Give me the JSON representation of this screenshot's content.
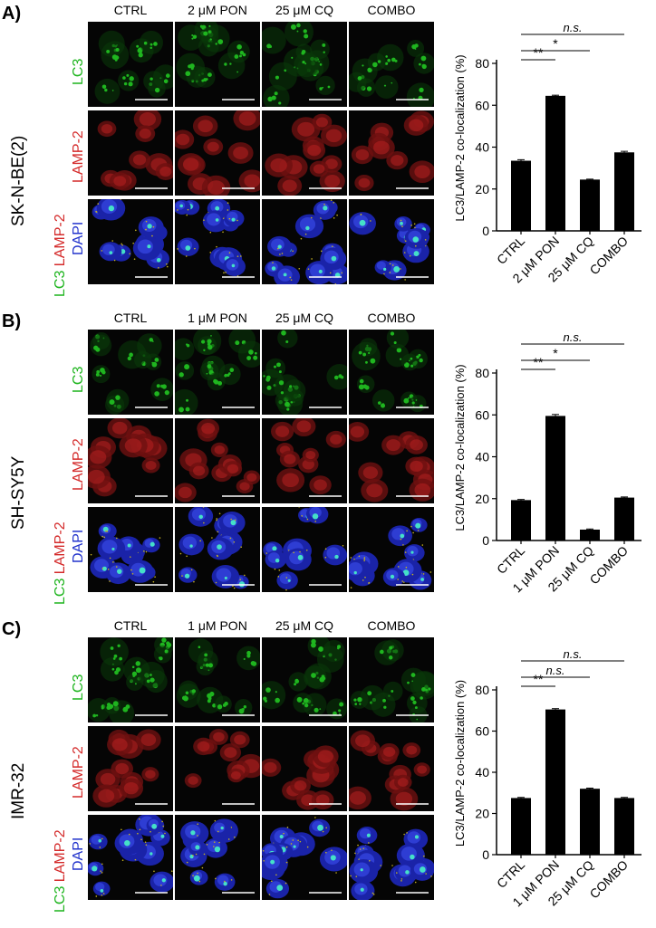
{
  "colors": {
    "lc3": "#1fb51f",
    "lamp2": "#d42a2a",
    "dapi": "#2233cc",
    "bar": "#000000"
  },
  "panels": [
    {
      "label": "A)",
      "cell_line": "SK-N-BE(2)",
      "columns": [
        "CTRL",
        "2 μM PON",
        "25 μM CQ",
        "COMBO"
      ],
      "row_labels": {
        "lc3": "LC3",
        "lamp2": "LAMP-2",
        "merge": [
          [
            {
              "text": "DAPI",
              "color": "dapi"
            }
          ],
          [
            {
              "text": "LC3 ",
              "color": "lc3"
            },
            {
              "text": "LAMP-2",
              "color": "lamp2"
            }
          ]
        ]
      }
    },
    {
      "label": "B)",
      "cell_line": "SH-SY5Y",
      "columns": [
        "CTRL",
        "1 μM PON",
        "25 μM CQ",
        "COMBO"
      ],
      "row_labels": {
        "lc3": "LC3",
        "lamp2": "LAMP-2",
        "merge": [
          [
            {
              "text": "DAPI",
              "color": "dapi"
            }
          ],
          [
            {
              "text": "LC3 ",
              "color": "lc3"
            },
            {
              "text": "LAMP-2",
              "color": "lamp2"
            }
          ]
        ]
      }
    },
    {
      "label": "C)",
      "cell_line": "IMR-32",
      "columns": [
        "CTRL",
        "1 μM PON",
        "25 μM CQ",
        "COMBO"
      ],
      "row_labels": {
        "lc3": "LC3",
        "lamp2": "LAMP-2",
        "merge": [
          [
            {
              "text": "DAPI",
              "color": "dapi"
            }
          ],
          [
            {
              "text": "LC3 ",
              "color": "lc3"
            },
            {
              "text": "LAMP-2",
              "color": "lamp2"
            }
          ]
        ]
      }
    }
  ],
  "chart_data": [
    {
      "type": "bar",
      "categories": [
        "CTRL",
        "2 μM PON",
        "25 μM CQ",
        "COMBO"
      ],
      "values": [
        33.5,
        64.5,
        24.5,
        37.5
      ],
      "errors": [
        0.5,
        0.3,
        0.2,
        0.5
      ],
      "ylabel": "LC3/LAMP-2 co-localization (%)",
      "ylim": [
        0,
        80
      ],
      "yticks": [
        0,
        20,
        40,
        60,
        80
      ],
      "significance": [
        {
          "from": "CTRL",
          "to": "2 μM PON",
          "label": "**"
        },
        {
          "from": "CTRL",
          "to": "25 μM CQ",
          "label": "*"
        },
        {
          "from": "CTRL",
          "to": "COMBO",
          "label": "n.s."
        }
      ]
    },
    {
      "type": "bar",
      "categories": [
        "CTRL",
        "1 μM PON",
        "25 μM CQ",
        "COMBO"
      ],
      "values": [
        19.3,
        59.5,
        5.2,
        20.5
      ],
      "errors": [
        0.3,
        0.7,
        0.3,
        0.3
      ],
      "ylabel": "LC3/LAMP-2 co-localization (%)",
      "ylim": [
        0,
        80
      ],
      "yticks": [
        0,
        20,
        40,
        60,
        80
      ],
      "significance": [
        {
          "from": "CTRL",
          "to": "1 μM PON",
          "label": "**"
        },
        {
          "from": "CTRL",
          "to": "25 μM CQ",
          "label": "*"
        },
        {
          "from": "CTRL",
          "to": "COMBO",
          "label": "n.s."
        }
      ]
    },
    {
      "type": "bar",
      "categories": [
        "CTRL",
        "1 μM PON",
        "25 μM CQ",
        "COMBO"
      ],
      "values": [
        27.5,
        70.5,
        32,
        27.5
      ],
      "errors": [
        0.3,
        0.4,
        0.3,
        0.3
      ],
      "ylabel": "LC3/LAMP-2 co-localization (%)",
      "ylim": [
        0,
        80
      ],
      "yticks": [
        0,
        20,
        40,
        60,
        80
      ],
      "significance": [
        {
          "from": "CTRL",
          "to": "1 μM PON",
          "label": "**"
        },
        {
          "from": "CTRL",
          "to": "25 μM CQ",
          "label": "n.s."
        },
        {
          "from": "CTRL",
          "to": "COMBO",
          "label": "n.s."
        }
      ]
    }
  ]
}
